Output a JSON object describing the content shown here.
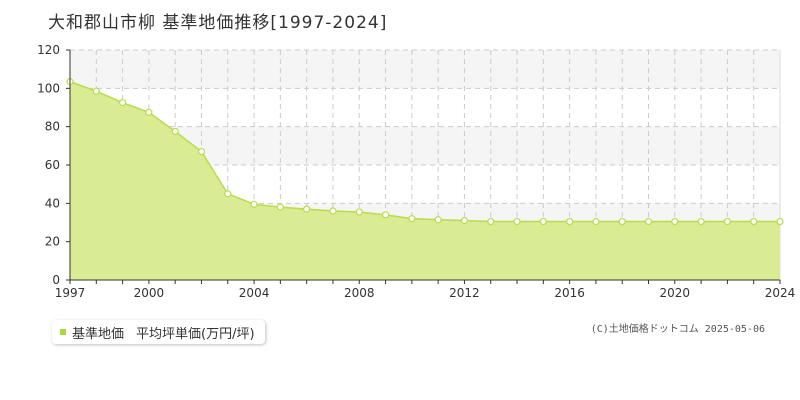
{
  "title": "大和郡山市柳  基準地価推移[1997-2024]",
  "legend": {
    "series_label": "基準地価",
    "unit_label": "平均坪単価(万円/坪)"
  },
  "copyright": "(C)土地価格ドットコム 2025-05-06",
  "colors": {
    "fill": "#d9ec93",
    "line": "#b8dc4a",
    "marker_stroke": "#b8dc4a",
    "marker_fill": "#ffffff",
    "band": "#f5f5f5",
    "grid": "#cccccc",
    "legend_swatch": "#a9d93e"
  },
  "chart_data": {
    "type": "area",
    "title": "大和郡山市柳  基準地価推移[1997-2024]",
    "xlim": [
      1997,
      2024
    ],
    "ylim": [
      0,
      120
    ],
    "x_ticks": [
      1997,
      2000,
      2004,
      2008,
      2012,
      2016,
      2020,
      2024
    ],
    "y_ticks": [
      0,
      20,
      40,
      60,
      80,
      100,
      120
    ],
    "grid": true,
    "series": [
      {
        "name": "基準地価",
        "x": [
          1997,
          1998,
          1999,
          2000,
          2001,
          2002,
          2003,
          2004,
          2005,
          2006,
          2007,
          2008,
          2009,
          2010,
          2011,
          2012,
          2013,
          2014,
          2015,
          2016,
          2017,
          2018,
          2019,
          2020,
          2021,
          2022,
          2023,
          2024
        ],
        "values": [
          103.5,
          98.5,
          92.5,
          87.5,
          77.5,
          67.0,
          45.0,
          39.5,
          38.0,
          37.0,
          36.0,
          35.5,
          34.0,
          32.0,
          31.5,
          31.0,
          30.5,
          30.5,
          30.5,
          30.5,
          30.5,
          30.5,
          30.5,
          30.5,
          30.5,
          30.5,
          30.5,
          30.5
        ]
      }
    ]
  }
}
